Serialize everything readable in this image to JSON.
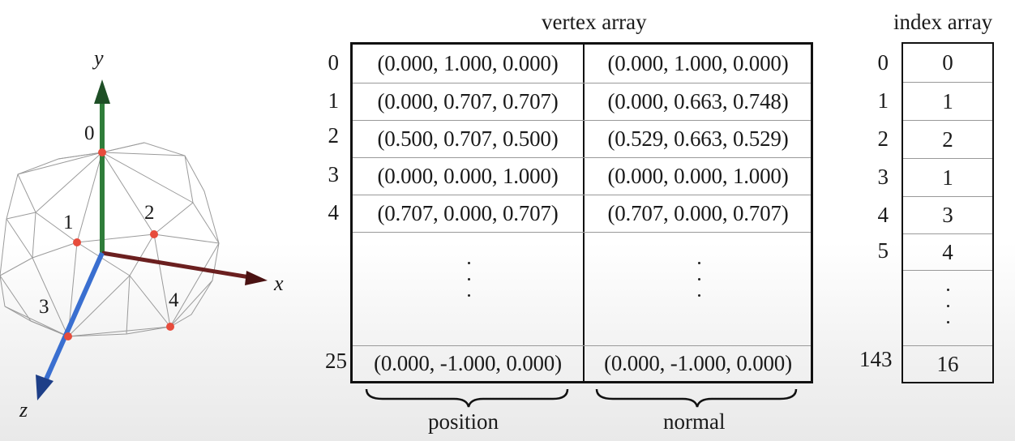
{
  "figure": {
    "axis_labels": {
      "x": "x",
      "y": "y",
      "z": "z"
    },
    "vertex_labels": [
      "0",
      "1",
      "2",
      "3",
      "4"
    ],
    "axis_colors": {
      "x": "#6b1a1a",
      "y": "#1f6b2a",
      "z": "#2a5db8"
    },
    "point_color": "#e74c3c"
  },
  "vertex_array": {
    "title": "vertex array",
    "rows": [
      {
        "index": "0",
        "position": "(0.000, 1.000, 0.000)",
        "normal": "(0.000, 1.000, 0.000)"
      },
      {
        "index": "1",
        "position": "(0.000, 0.707, 0.707)",
        "normal": "(0.000, 0.663, 0.748)"
      },
      {
        "index": "2",
        "position": "(0.500, 0.707, 0.500)",
        "normal": "(0.529, 0.663, 0.529)"
      },
      {
        "index": "3",
        "position": "(0.000, 0.000, 1.000)",
        "normal": "(0.000, 0.000, 1.000)"
      },
      {
        "index": "4",
        "position": "(0.707, 0.000, 0.707)",
        "normal": "(0.707, 0.000, 0.707)"
      }
    ],
    "last_row": {
      "index": "25",
      "position": "(0.000, -1.000, 0.000)",
      "normal": "(0.000, -1.000, 0.000)"
    },
    "position_label": "position",
    "normal_label": "normal"
  },
  "index_array": {
    "title": "index array",
    "rows": [
      {
        "index": "0",
        "value": "0"
      },
      {
        "index": "1",
        "value": "1"
      },
      {
        "index": "2",
        "value": "2"
      },
      {
        "index": "3",
        "value": "1"
      },
      {
        "index": "4",
        "value": "3"
      },
      {
        "index": "5",
        "value": "4"
      }
    ],
    "last_row": {
      "index": "143",
      "value": "16"
    }
  }
}
